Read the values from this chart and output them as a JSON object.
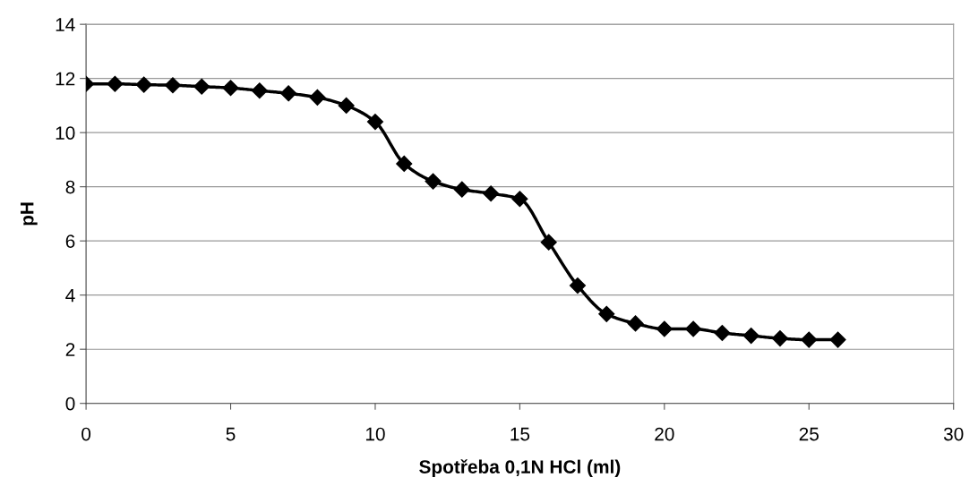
{
  "chart_data": {
    "type": "line",
    "xlabel": "Spotřeba 0,1N HCl (ml)",
    "ylabel": "pH",
    "x": [
      0,
      1,
      2,
      3,
      4,
      5,
      6,
      7,
      8,
      9,
      10,
      11,
      12,
      13,
      14,
      15,
      16,
      17,
      18,
      19,
      20,
      21,
      22,
      23,
      24,
      25,
      26
    ],
    "series": [
      {
        "color": "#000000",
        "values": [
          11.8,
          11.8,
          11.77,
          11.75,
          11.7,
          11.65,
          11.55,
          11.45,
          11.3,
          11.0,
          10.4,
          8.85,
          8.2,
          7.9,
          7.75,
          7.55,
          5.95,
          4.35,
          3.3,
          2.95,
          2.75,
          2.75,
          2.6,
          2.5,
          2.4,
          2.35,
          2.35
        ]
      }
    ],
    "xlim": [
      0,
      30
    ],
    "xticks": [
      0,
      5,
      10,
      15,
      20,
      25,
      30
    ],
    "ylim": [
      0,
      14
    ],
    "yticks": [
      0,
      2,
      4,
      6,
      8,
      10,
      12,
      14
    ],
    "grid": "y",
    "marker": "diamond",
    "line_style": "solid",
    "legend": false
  }
}
